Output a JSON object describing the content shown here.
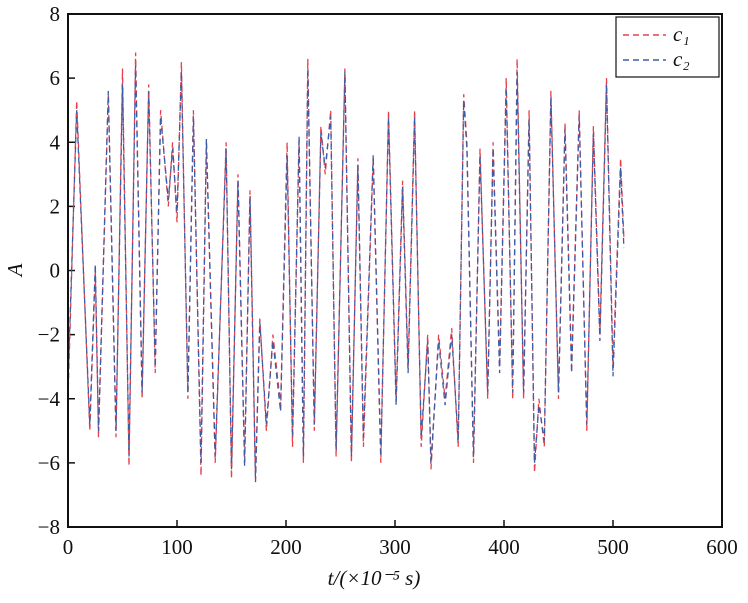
{
  "chart_data": {
    "type": "line",
    "x": [
      0,
      8,
      20,
      25,
      28,
      37,
      44,
      50,
      56,
      62,
      68,
      74,
      80,
      85,
      92,
      96,
      100,
      104,
      110,
      115,
      122,
      127,
      135,
      145,
      150,
      156,
      162,
      167,
      172,
      176,
      182,
      188,
      195,
      201,
      206,
      212,
      216,
      220,
      226,
      232,
      236,
      241,
      246,
      254,
      260,
      266,
      271,
      280,
      287,
      294,
      301,
      307,
      312,
      318,
      324,
      330,
      333,
      340,
      346,
      352,
      358,
      363,
      366,
      372,
      378,
      385,
      390,
      396,
      402,
      408,
      412,
      418,
      423,
      428,
      432,
      437,
      443,
      450,
      456,
      462,
      469,
      476,
      482,
      488,
      494,
      500,
      507,
      510
    ],
    "series": [
      {
        "name": "c₁",
        "color": "#e5414b",
        "values": [
          -4,
          5.3,
          -5,
          0,
          -5.2,
          5.5,
          -5.2,
          6.3,
          -6.1,
          6.8,
          -4,
          5.8,
          -3.2,
          5,
          2,
          4,
          1.5,
          6.5,
          -4,
          5,
          -6.4,
          4,
          -6,
          4,
          -6.5,
          3,
          -6,
          2.5,
          -6.5,
          -1.5,
          -5,
          -2,
          -4.2,
          4,
          -5.5,
          4,
          -6,
          6.6,
          -5,
          4.5,
          3,
          5,
          -5.8,
          6.3,
          -6,
          3.5,
          -5.5,
          3.5,
          -6,
          5,
          -4,
          2.8,
          -3,
          5,
          -5.5,
          -2,
          -6.2,
          -2,
          -4,
          -1.8,
          -5.5,
          5.5,
          4,
          -6,
          3.8,
          -4,
          4,
          -3,
          6,
          -4,
          6.6,
          -4,
          5,
          -6.3,
          -4,
          -5.5,
          5.6,
          -4,
          4.6,
          -3,
          5,
          -5,
          4.5,
          -2,
          6,
          -3,
          3.5,
          1
        ]
      },
      {
        "name": "c₂",
        "color": "#3b5da6",
        "values": [
          -3.5,
          5,
          -4.8,
          0.2,
          -5,
          5.6,
          -5,
          5.8,
          -5.8,
          6.4,
          -3.8,
          5.6,
          -3,
          4.8,
          2.2,
          3.8,
          1.8,
          6.2,
          -3.8,
          4.8,
          -6,
          4.1,
          -5.8,
          3.8,
          -6.2,
          2.8,
          -6.1,
          2.3,
          -6.6,
          -1.6,
          -4.8,
          -2.2,
          -4.4,
          3.6,
          -5.2,
          4.2,
          -5.8,
          6.3,
          -4.8,
          4.3,
          3.2,
          4.8,
          -5.6,
          6.2,
          -5.8,
          3.3,
          -5.2,
          3.6,
          -5.8,
          4.8,
          -4.2,
          2.6,
          -3.2,
          4.8,
          -5.2,
          -2.2,
          -6,
          -2.2,
          -4.2,
          -2,
          -5.3,
          5.3,
          3.8,
          -5.8,
          3.6,
          -3.8,
          3.8,
          -3.2,
          5.7,
          -3.8,
          6.2,
          -3.8,
          4.7,
          -6,
          -4.2,
          -5.3,
          5.4,
          -3.8,
          4.4,
          -3.2,
          4.8,
          -4.8,
          4.3,
          -2.2,
          5.8,
          -3.3,
          3.2,
          0.7
        ]
      }
    ],
    "xlabel": "t/(×10⁻⁵ s)",
    "ylabel": "A",
    "xlim": [
      0,
      600
    ],
    "xticks": [
      0,
      100,
      200,
      300,
      400,
      500,
      600
    ],
    "ylim": [
      -8,
      8
    ],
    "yticks": [
      {
        "value": -8,
        "label": "−8"
      },
      {
        "value": -6,
        "label": "−6"
      },
      {
        "value": -4,
        "label": "−4"
      },
      {
        "value": -2,
        "label": "−2"
      },
      0,
      2,
      4,
      6,
      8
    ],
    "legend": "upper right"
  }
}
